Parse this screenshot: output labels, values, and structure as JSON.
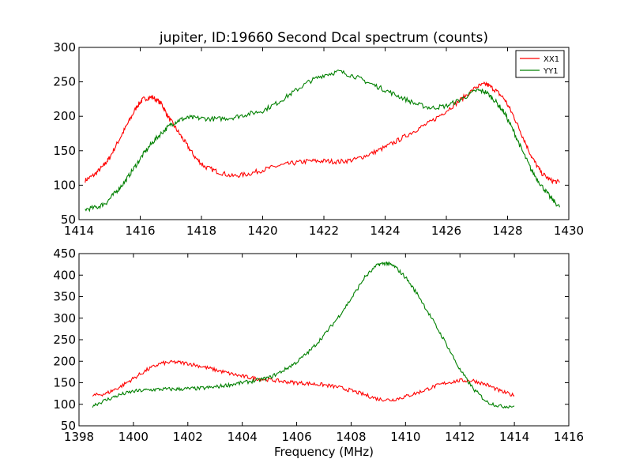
{
  "figure": {
    "title": "jupiter, ID:19660 Second Dcal spectrum (counts)",
    "background": "#ffffff"
  },
  "chart_data": [
    {
      "type": "line",
      "title": "jupiter, ID:19660 Second Dcal spectrum (counts)",
      "xlabel": "",
      "ylabel": "",
      "xlim": [
        1414,
        1430
      ],
      "ylim": [
        50,
        300
      ],
      "xticks": [
        1414,
        1416,
        1418,
        1420,
        1422,
        1424,
        1426,
        1428,
        1430
      ],
      "yticks": [
        50,
        100,
        150,
        200,
        250,
        300
      ],
      "grid": false,
      "legend": {
        "placement": "top-right",
        "entries": [
          "XX1",
          "YY1"
        ]
      },
      "series": [
        {
          "name": "XX1",
          "color": "#ff0000",
          "points": [
            [
              1414.2,
              107
            ],
            [
              1414.5,
              115
            ],
            [
              1414.8,
              128
            ],
            [
              1415.0,
              140
            ],
            [
              1415.3,
              165
            ],
            [
              1415.6,
              190
            ],
            [
              1415.9,
              215
            ],
            [
              1416.1,
              225
            ],
            [
              1416.4,
              228
            ],
            [
              1416.7,
              218
            ],
            [
              1416.9,
              200
            ],
            [
              1417.2,
              180
            ],
            [
              1417.5,
              160
            ],
            [
              1417.8,
              140
            ],
            [
              1418.1,
              127
            ],
            [
              1418.5,
              120
            ],
            [
              1419.0,
              113
            ],
            [
              1419.5,
              116
            ],
            [
              1420.0,
              122
            ],
            [
              1420.5,
              128
            ],
            [
              1421.0,
              132
            ],
            [
              1421.5,
              135
            ],
            [
              1422.0,
              135
            ],
            [
              1422.5,
              134
            ],
            [
              1423.0,
              137
            ],
            [
              1423.5,
              145
            ],
            [
              1424.0,
              155
            ],
            [
              1424.5,
              167
            ],
            [
              1425.0,
              180
            ],
            [
              1425.5,
              192
            ],
            [
              1426.0,
              208
            ],
            [
              1426.5,
              225
            ],
            [
              1427.0,
              243
            ],
            [
              1427.3,
              247
            ],
            [
              1427.6,
              238
            ],
            [
              1427.9,
              225
            ],
            [
              1428.2,
              200
            ],
            [
              1428.5,
              170
            ],
            [
              1428.8,
              140
            ],
            [
              1429.1,
              118
            ],
            [
              1429.4,
              107
            ],
            [
              1429.7,
              104
            ]
          ]
        },
        {
          "name": "YY1",
          "color": "#008000",
          "points": [
            [
              1414.2,
              65
            ],
            [
              1414.6,
              68
            ],
            [
              1414.9,
              75
            ],
            [
              1415.2,
              90
            ],
            [
              1415.5,
              105
            ],
            [
              1415.8,
              125
            ],
            [
              1416.1,
              145
            ],
            [
              1416.4,
              162
            ],
            [
              1416.7,
              176
            ],
            [
              1417.0,
              188
            ],
            [
              1417.3,
              195
            ],
            [
              1417.6,
              198
            ],
            [
              1418.0,
              197
            ],
            [
              1418.5,
              196
            ],
            [
              1419.0,
              198
            ],
            [
              1419.5,
              203
            ],
            [
              1420.0,
              208
            ],
            [
              1420.5,
              220
            ],
            [
              1421.0,
              235
            ],
            [
              1421.5,
              250
            ],
            [
              1422.0,
              260
            ],
            [
              1422.5,
              265
            ],
            [
              1423.0,
              258
            ],
            [
              1423.5,
              248
            ],
            [
              1424.0,
              238
            ],
            [
              1424.5,
              228
            ],
            [
              1425.0,
              218
            ],
            [
              1425.5,
              212
            ],
            [
              1426.0,
              215
            ],
            [
              1426.5,
              225
            ],
            [
              1427.0,
              238
            ],
            [
              1427.3,
              235
            ],
            [
              1427.6,
              222
            ],
            [
              1427.9,
              205
            ],
            [
              1428.2,
              178
            ],
            [
              1428.5,
              148
            ],
            [
              1428.8,
              120
            ],
            [
              1429.1,
              100
            ],
            [
              1429.4,
              82
            ],
            [
              1429.7,
              68
            ]
          ]
        }
      ]
    },
    {
      "type": "line",
      "title": "",
      "xlabel": "Frequency (MHz)",
      "ylabel": "",
      "xlim": [
        1398,
        1416
      ],
      "ylim": [
        50,
        450
      ],
      "xticks": [
        1398,
        1400,
        1402,
        1404,
        1406,
        1408,
        1410,
        1412,
        1414,
        1416
      ],
      "yticks": [
        50,
        100,
        150,
        200,
        250,
        300,
        350,
        400,
        450
      ],
      "grid": false,
      "series": [
        {
          "name": "XX1",
          "color": "#ff0000",
          "points": [
            [
              1398.5,
              120
            ],
            [
              1399.0,
              125
            ],
            [
              1399.5,
              140
            ],
            [
              1400.0,
              160
            ],
            [
              1400.5,
              180
            ],
            [
              1401.0,
              195
            ],
            [
              1401.5,
              198
            ],
            [
              1402.0,
              195
            ],
            [
              1402.5,
              188
            ],
            [
              1403.0,
              180
            ],
            [
              1403.5,
              172
            ],
            [
              1404.0,
              165
            ],
            [
              1404.5,
              160
            ],
            [
              1405.0,
              157
            ],
            [
              1405.5,
              153
            ],
            [
              1406.0,
              150
            ],
            [
              1406.5,
              148
            ],
            [
              1407.0,
              145
            ],
            [
              1407.5,
              140
            ],
            [
              1408.0,
              132
            ],
            [
              1408.5,
              122
            ],
            [
              1409.0,
              112
            ],
            [
              1409.5,
              110
            ],
            [
              1410.0,
              118
            ],
            [
              1410.5,
              128
            ],
            [
              1411.0,
              140
            ],
            [
              1411.5,
              150
            ],
            [
              1412.0,
              155
            ],
            [
              1412.5,
              155
            ],
            [
              1413.0,
              145
            ],
            [
              1413.5,
              130
            ],
            [
              1414.0,
              120
            ]
          ]
        },
        {
          "name": "YY1",
          "color": "#008000",
          "points": [
            [
              1398.5,
              97
            ],
            [
              1399.0,
              110
            ],
            [
              1399.5,
              122
            ],
            [
              1400.0,
              130
            ],
            [
              1400.5,
              133
            ],
            [
              1401.0,
              135
            ],
            [
              1401.5,
              135
            ],
            [
              1402.0,
              136
            ],
            [
              1402.5,
              137
            ],
            [
              1403.0,
              140
            ],
            [
              1403.5,
              145
            ],
            [
              1404.0,
              150
            ],
            [
              1404.5,
              155
            ],
            [
              1405.0,
              162
            ],
            [
              1405.5,
              178
            ],
            [
              1406.0,
              198
            ],
            [
              1406.5,
              225
            ],
            [
              1407.0,
              260
            ],
            [
              1407.5,
              300
            ],
            [
              1408.0,
              345
            ],
            [
              1408.5,
              395
            ],
            [
              1409.0,
              425
            ],
            [
              1409.3,
              428
            ],
            [
              1409.6,
              420
            ],
            [
              1410.0,
              395
            ],
            [
              1410.5,
              350
            ],
            [
              1411.0,
              295
            ],
            [
              1411.5,
              240
            ],
            [
              1412.0,
              180
            ],
            [
              1412.5,
              135
            ],
            [
              1413.0,
              105
            ],
            [
              1413.5,
              95
            ],
            [
              1414.0,
              96
            ]
          ]
        }
      ]
    }
  ]
}
